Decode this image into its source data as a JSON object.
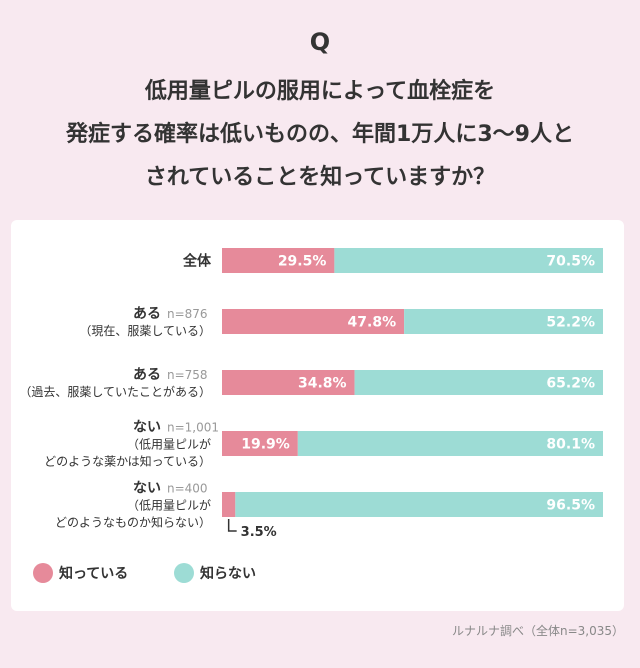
{
  "header": {
    "q_mark": "Q",
    "question_lines": [
      "低用量ピルの服用によって血栓症を",
      "発症する確率は低いものの、年間1万人に3～9人と",
      "されていることを知っていますか？"
    ]
  },
  "colors": {
    "page_background": "#f8e9f0",
    "know": "#e68a9a",
    "dont_know": "#9ddcd5",
    "text": "#333333",
    "muted": "#999999"
  },
  "chart_data": {
    "type": "bar",
    "orientation": "horizontal",
    "stacked": true,
    "xlim": [
      0,
      100
    ],
    "unit": "%",
    "categories": [
      {
        "label_lines": [
          "全体"
        ],
        "n": ""
      },
      {
        "label_lines": [
          "ある",
          "（現在、服薬している）"
        ],
        "n": "n=876"
      },
      {
        "label_lines": [
          "ある",
          "（過去、服薬していたことがある）"
        ],
        "n": "n=758"
      },
      {
        "label_lines": [
          "ない",
          "（低用量ピルが",
          "どのような薬かは知っている）"
        ],
        "n": "n=1,001"
      },
      {
        "label_lines": [
          "ない",
          "（低用量ピルが",
          "どのようなものか知らない）"
        ],
        "n": "n=400"
      }
    ],
    "series": [
      {
        "name": "知っている",
        "values": [
          29.5,
          47.8,
          34.8,
          19.9,
          3.5
        ],
        "labels": [
          "29.5%",
          "47.8%",
          "34.8%",
          "19.9%",
          "3.5%"
        ]
      },
      {
        "name": "知らない",
        "values": [
          70.5,
          52.2,
          65.2,
          80.1,
          96.5
        ],
        "labels": [
          "70.5%",
          "52.2%",
          "65.2%",
          "80.1%",
          "96.5%"
        ]
      }
    ],
    "legend_placement": "bottom-left"
  },
  "footer": {
    "source": "ルナルナ調べ（全体n=3,035）"
  }
}
